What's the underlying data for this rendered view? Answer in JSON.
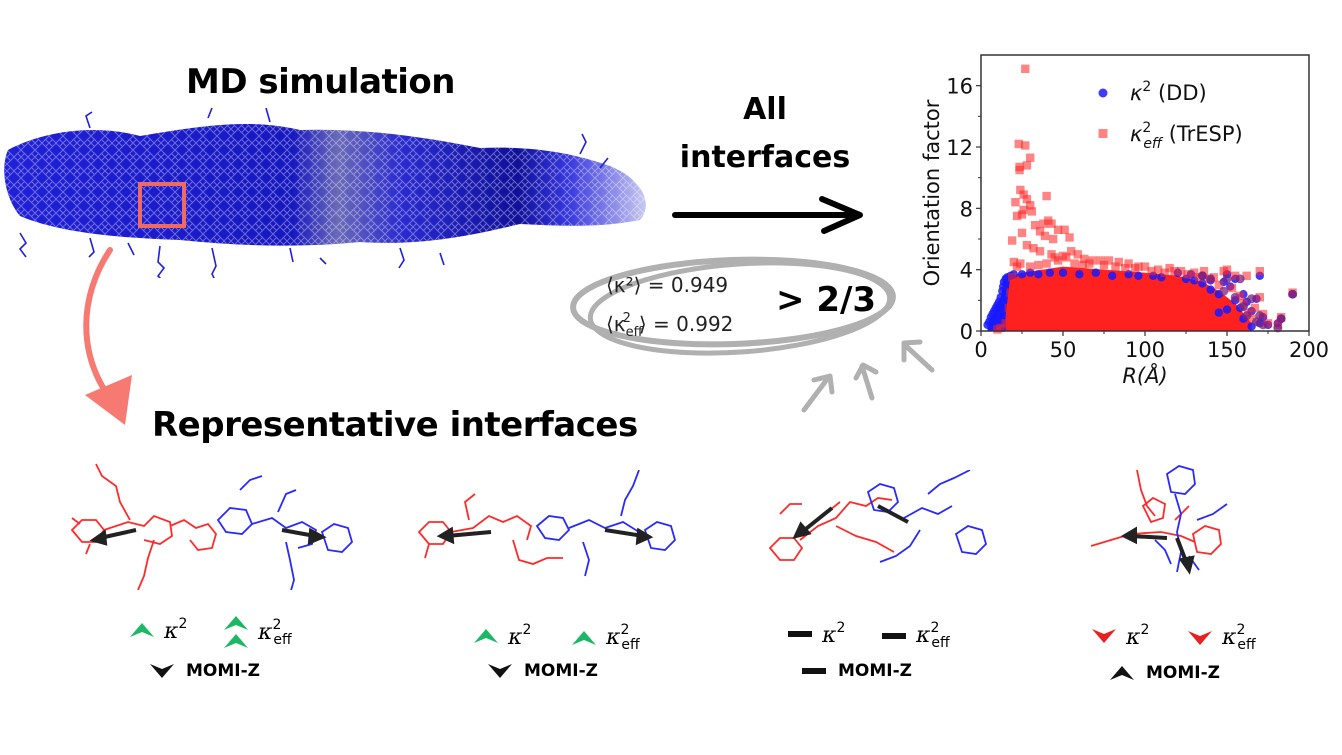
{
  "titles": {
    "md_simulation": "MD simulation",
    "all_interfaces_line1": "All",
    "all_interfaces_line2": "interfaces",
    "representative_interfaces": "Representative interfaces"
  },
  "averages": {
    "kappa2_label": "⟨κ²⟩",
    "kappa2_value": "= 0.949",
    "kappa2_eff_label": "⟨κ",
    "kappa2_eff_value": "= 0.992",
    "comparison": "> 2/3"
  },
  "colors": {
    "dd_blue": "#1a1aff",
    "tresp_red": "#ff2020",
    "highlight_box": "#f06a62",
    "curved_arrow": "#f77a72",
    "increase_green": "#1db866",
    "decrease_red": "#e82020",
    "neutral_black": "#111111",
    "ellipse_grey": "#b0b0b0"
  },
  "interfaces": [
    {
      "kappa2": {
        "symbol": "κ",
        "sup": "2",
        "trend": "up",
        "count": 1
      },
      "kappa2_eff": {
        "symbol": "κ",
        "sup": "2",
        "sub": "eff",
        "trend": "up",
        "count": 2
      },
      "momi": {
        "label": "MOMI-Z",
        "trend": "down"
      }
    },
    {
      "kappa2": {
        "symbol": "κ",
        "sup": "2",
        "trend": "up",
        "count": 1
      },
      "kappa2_eff": {
        "symbol": "κ",
        "sup": "2",
        "sub": "eff",
        "trend": "up",
        "count": 1
      },
      "momi": {
        "label": "MOMI-Z",
        "trend": "down"
      }
    },
    {
      "kappa2": {
        "symbol": "κ",
        "sup": "2",
        "trend": "flat",
        "count": 1
      },
      "kappa2_eff": {
        "symbol": "κ",
        "sup": "2",
        "sub": "eff",
        "trend": "flat",
        "count": 1
      },
      "momi": {
        "label": "MOMI-Z",
        "trend": "flat"
      }
    },
    {
      "kappa2": {
        "symbol": "κ",
        "sup": "2",
        "trend": "down",
        "count": 1
      },
      "kappa2_eff": {
        "symbol": "κ",
        "sup": "2",
        "sub": "eff",
        "trend": "down",
        "count": 1
      },
      "momi": {
        "label": "MOMI-Z",
        "trend": "up"
      }
    }
  ],
  "chart_data": {
    "type": "scatter",
    "title": "",
    "xlabel": "R(Å)",
    "ylabel": "Orientation factor",
    "xlim": [
      0,
      200
    ],
    "ylim": [
      0,
      18
    ],
    "xticks": [
      0,
      50,
      100,
      150,
      200
    ],
    "yticks": [
      0,
      4,
      8,
      12,
      16
    ],
    "grid": false,
    "legend_position": "top-right",
    "series": [
      {
        "name": "κ² (DD)",
        "legend_label": "κ",
        "legend_sup": "2",
        "legend_suffix": " (DD)",
        "marker": "circle",
        "color": "#1a1aff",
        "points": [
          [
            4,
            0.4
          ],
          [
            5,
            0.6
          ],
          [
            6,
            0.9
          ],
          [
            7,
            1.1
          ],
          [
            8,
            1.3
          ],
          [
            9,
            1.5
          ],
          [
            10,
            1.7
          ],
          [
            11,
            1.9
          ],
          [
            12,
            2.2
          ],
          [
            13,
            2.6
          ],
          [
            13.5,
            2.9
          ],
          [
            14,
            3.2
          ],
          [
            15,
            3.4
          ],
          [
            16,
            3.5
          ],
          [
            18,
            3.6
          ],
          [
            20,
            3.7
          ],
          [
            25,
            3.7
          ],
          [
            30,
            3.8
          ],
          [
            42,
            3.8
          ],
          [
            60,
            3.7
          ],
          [
            80,
            3.6
          ],
          [
            96,
            3.6
          ],
          [
            110,
            3.5
          ],
          [
            125,
            3.4
          ],
          [
            130,
            3.3
          ],
          [
            135,
            3.1
          ],
          [
            140,
            2.7
          ],
          [
            145,
            2.4
          ],
          [
            148,
            3.2
          ],
          [
            150,
            3.7
          ],
          [
            152,
            2.9
          ],
          [
            155,
            2.0
          ],
          [
            158,
            1.5
          ],
          [
            160,
            2.4
          ],
          [
            162,
            1.9
          ],
          [
            165,
            1.3
          ],
          [
            168,
            2.1
          ],
          [
            170,
            3.6
          ],
          [
            172,
            0.9
          ],
          [
            175,
            0.4
          ],
          [
            181,
            0.5
          ],
          [
            183,
            0.8
          ],
          [
            190,
            2.4
          ],
          [
            155,
            3.4
          ],
          [
            145,
            1.2
          ],
          [
            150,
            1.4
          ],
          [
            160,
            0.8
          ],
          [
            165,
            0.3
          ],
          [
            170,
            0.5
          ],
          [
            140,
            3.3
          ],
          [
            135,
            3.6
          ],
          [
            128,
            3.7
          ],
          [
            120,
            3.8
          ],
          [
            105,
            3.6
          ],
          [
            90,
            3.7
          ],
          [
            70,
            3.8
          ],
          [
            50,
            3.8
          ],
          [
            35,
            3.7
          ]
        ]
      },
      {
        "name": "κ²eff (TrESP)",
        "legend_label": "κ",
        "legend_sup": "2",
        "legend_sub": "eff",
        "legend_suffix": " (TrESP)",
        "marker": "square",
        "color": "#ff2020",
        "points": [
          [
            27,
            17.1
          ],
          [
            23,
            12.2
          ],
          [
            27,
            12.1
          ],
          [
            30,
            11.3
          ],
          [
            28,
            10.8
          ],
          [
            23.5,
            10.5
          ],
          [
            23.5,
            10.7
          ],
          [
            24,
            9.2
          ],
          [
            26,
            8.9
          ],
          [
            21,
            8.4
          ],
          [
            28,
            8.6
          ],
          [
            30,
            8.2
          ],
          [
            26,
            7.9
          ],
          [
            22,
            7.5
          ],
          [
            25,
            7.6
          ],
          [
            31,
            7.8
          ],
          [
            40,
            8.8
          ],
          [
            33,
            6.9
          ],
          [
            38,
            7.0
          ],
          [
            41,
            7.2
          ],
          [
            43,
            7.0
          ],
          [
            47,
            6.6
          ],
          [
            51,
            6.6
          ],
          [
            54,
            6.1
          ],
          [
            36,
            6.5
          ],
          [
            39,
            6.2
          ],
          [
            44,
            6.0
          ],
          [
            25,
            6.4
          ],
          [
            19,
            5.9
          ],
          [
            28,
            5.6
          ],
          [
            32,
            5.4
          ],
          [
            36,
            5.2
          ],
          [
            43,
            5.0
          ],
          [
            45,
            4.8
          ],
          [
            50,
            4.9
          ],
          [
            55,
            5.2
          ],
          [
            59,
            5.0
          ],
          [
            63,
            4.7
          ],
          [
            68,
            4.6
          ],
          [
            73,
            4.6
          ],
          [
            78,
            4.6
          ],
          [
            84,
            4.5
          ],
          [
            90,
            4.4
          ],
          [
            96,
            4.2
          ],
          [
            100,
            4.2
          ],
          [
            108,
            4.0
          ],
          [
            115,
            4.1
          ],
          [
            122,
            3.9
          ],
          [
            130,
            3.8
          ],
          [
            136,
            3.9
          ],
          [
            142,
            3.5
          ],
          [
            148,
            3.9
          ],
          [
            150,
            4.0
          ],
          [
            155,
            3.6
          ],
          [
            162,
            3.6
          ],
          [
            170,
            3.9
          ],
          [
            190,
            2.5
          ],
          [
            20,
            4.5
          ],
          [
            22,
            4.2
          ],
          [
            24,
            4.4
          ],
          [
            30,
            4.2
          ],
          [
            35,
            4.3
          ],
          [
            40,
            4.4
          ],
          [
            47,
            4.6
          ],
          [
            52,
            4.8
          ],
          [
            57,
            4.4
          ],
          [
            62,
            4.3
          ],
          [
            66,
            4.4
          ],
          [
            75,
            4.3
          ],
          [
            82,
            4.2
          ],
          [
            88,
            4.1
          ],
          [
            94,
            4.1
          ],
          [
            104,
            3.9
          ],
          [
            112,
            3.8
          ],
          [
            118,
            3.9
          ],
          [
            126,
            3.7
          ],
          [
            133,
            3.5
          ],
          [
            139,
            3.4
          ],
          [
            145,
            3.0
          ],
          [
            153,
            2.8
          ],
          [
            158,
            2.3
          ],
          [
            160,
            1.8
          ],
          [
            163,
            1.2
          ],
          [
            165,
            0.8
          ],
          [
            167,
            1.5
          ],
          [
            172,
            1.1
          ],
          [
            175,
            0.5
          ],
          [
            181,
            0.4
          ],
          [
            183,
            0.9
          ],
          [
            170,
            2.2
          ],
          [
            155,
            1.0
          ],
          [
            15,
            0.5
          ],
          [
            17,
            1.5
          ],
          [
            18,
            2.5
          ],
          [
            19,
            3.5
          ],
          [
            12,
            0.2
          ],
          [
            10,
            0.1
          ]
        ],
        "dense_region": {
          "x_range": [
            15,
            165
          ],
          "y_upper_envelope": [
            [
              15,
              1.0
            ],
            [
              18,
              3.6
            ],
            [
              25,
              3.8
            ],
            [
              50,
              4.2
            ],
            [
              75,
              4.0
            ],
            [
              100,
              3.8
            ],
            [
              120,
              3.6
            ],
            [
              135,
              3.2
            ],
            [
              145,
              2.6
            ],
            [
              155,
              1.8
            ],
            [
              165,
              0.5
            ]
          ]
        }
      }
    ]
  }
}
